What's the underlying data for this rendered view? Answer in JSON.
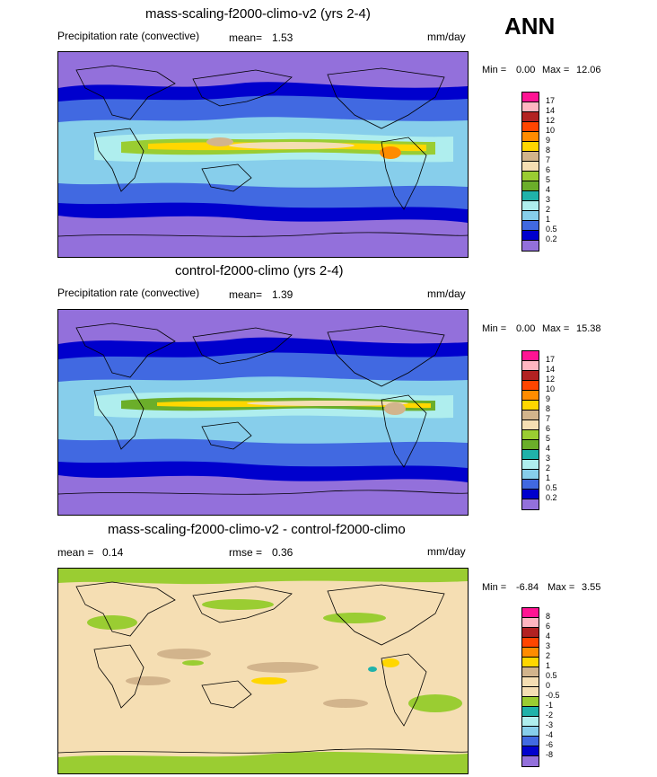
{
  "season": "ANN",
  "panels": [
    {
      "title": "mass-scaling-f2000-climo-v2 (yrs 2-4)",
      "variable": "Precipitation rate (convective)",
      "stat_label": "mean=",
      "stat_value": "1.53",
      "units": "mm/day",
      "min_label": "Min =",
      "min_value": "0.00",
      "max_label": "Max =",
      "max_value": "12.06",
      "levels": [
        "17",
        "14",
        "12",
        "10",
        "9",
        "8",
        "7",
        "6",
        "5",
        "4",
        "3",
        "2",
        "1",
        "0.5",
        "0.2"
      ],
      "colors": [
        "#ff1493",
        "#ffb6c1",
        "#b22222",
        "#ff4500",
        "#ff8c00",
        "#ffd700",
        "#d2b48c",
        "#f5deb3",
        "#9acd32",
        "#6bae2a",
        "#20b2aa",
        "#afeeee",
        "#87ceeb",
        "#4169e1",
        "#0000cd",
        "#9370db"
      ]
    },
    {
      "title": "control-f2000-climo (yrs 2-4)",
      "variable": "Precipitation rate (convective)",
      "stat_label": "mean=",
      "stat_value": "1.39",
      "units": "mm/day",
      "min_label": "Min =",
      "min_value": "0.00",
      "max_label": "Max =",
      "max_value": "15.38",
      "levels": [
        "17",
        "14",
        "12",
        "10",
        "9",
        "8",
        "7",
        "6",
        "5",
        "4",
        "3",
        "2",
        "1",
        "0.5",
        "0.2"
      ],
      "colors": [
        "#ff1493",
        "#ffb6c1",
        "#b22222",
        "#ff4500",
        "#ff8c00",
        "#ffd700",
        "#d2b48c",
        "#f5deb3",
        "#9acd32",
        "#6bae2a",
        "#20b2aa",
        "#afeeee",
        "#87ceeb",
        "#4169e1",
        "#0000cd",
        "#9370db"
      ]
    },
    {
      "title": "mass-scaling-f2000-climo-v2 - control-f2000-climo",
      "stat_label": "mean =",
      "stat_value": "0.14",
      "rmse_label": "rmse =",
      "rmse_value": "0.36",
      "units": "mm/day",
      "min_label": "Min =",
      "min_value": "-6.84",
      "max_label": "Max =",
      "max_value": "3.55",
      "levels": [
        "8",
        "6",
        "4",
        "3",
        "2",
        "1",
        "0.5",
        "0",
        "-0.5",
        "-1",
        "-2",
        "-3",
        "-4",
        "-6",
        "-8"
      ],
      "colors": [
        "#ff1493",
        "#ffb6c1",
        "#b22222",
        "#ff4500",
        "#ff8c00",
        "#ffd700",
        "#d2b48c",
        "#f5deb3",
        "#f5deb3",
        "#9acd32",
        "#20b2aa",
        "#afeeee",
        "#87ceeb",
        "#4169e1",
        "#0000cd",
        "#9370db"
      ]
    }
  ],
  "chart_data": [
    {
      "type": "heatmap",
      "title": "mass-scaling-f2000-climo-v2 (yrs 2-4)",
      "variable": "Precipitation rate (convective)",
      "units": "mm/day",
      "mean": 1.53,
      "min": 0.0,
      "max": 12.06,
      "contour_levels": [
        0.2,
        0.5,
        1,
        2,
        3,
        4,
        5,
        6,
        7,
        8,
        9,
        10,
        12,
        14,
        17
      ]
    },
    {
      "type": "heatmap",
      "title": "control-f2000-climo (yrs 2-4)",
      "variable": "Precipitation rate (convective)",
      "units": "mm/day",
      "mean": 1.39,
      "min": 0.0,
      "max": 15.38,
      "contour_levels": [
        0.2,
        0.5,
        1,
        2,
        3,
        4,
        5,
        6,
        7,
        8,
        9,
        10,
        12,
        14,
        17
      ]
    },
    {
      "type": "heatmap",
      "title": "mass-scaling-f2000-climo-v2 - control-f2000-climo",
      "units": "mm/day",
      "mean": 0.14,
      "rmse": 0.36,
      "min": -6.84,
      "max": 3.55,
      "contour_levels": [
        -8,
        -6,
        -4,
        -3,
        -2,
        -1,
        -0.5,
        0,
        0.5,
        1,
        2,
        3,
        4,
        6,
        8
      ]
    }
  ]
}
